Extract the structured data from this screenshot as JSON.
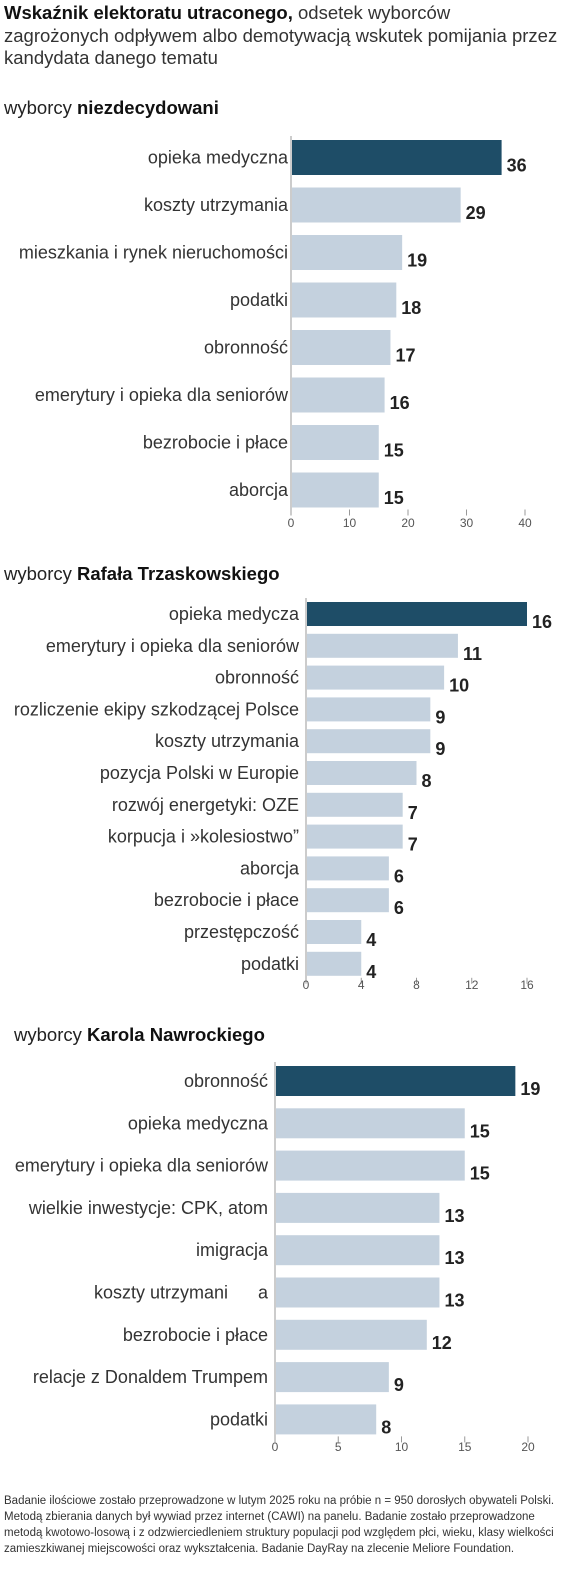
{
  "title": {
    "bold": "Wskaźnik elektoratu utraconego,",
    "rest": " odsetek wyborców zagrożonych odpływem albo demotywacją wskutek pomijania przez kandydata danego tematu"
  },
  "colors": {
    "highlight": "#1e4d67",
    "bar": "#c4d1de",
    "gridline": "#999999"
  },
  "chart_data": [
    {
      "type": "bar",
      "orientation": "horizontal",
      "label_prefix": "wyborcy ",
      "label_bold": "niezdecydowani",
      "categories": [
        "opieka medyczna",
        "koszty utrzymania",
        "mieszkania i rynek nieruchomości",
        "podatki",
        "obronność",
        "emerytury i opieka dla seniorów",
        "bezrobocie i płace",
        "aborcja"
      ],
      "values": [
        36,
        29,
        19,
        18,
        17,
        16,
        15,
        15
      ],
      "value_labels": [
        "36",
        "29",
        "19",
        "18",
        "17",
        "16",
        "15",
        "15"
      ],
      "xlim": [
        0,
        40
      ],
      "ticks": [
        0,
        10,
        20,
        30,
        40
      ],
      "tick_labels": [
        "0",
        "10",
        "20",
        "30",
        "40"
      ],
      "highlight_index": 0
    },
    {
      "type": "bar",
      "orientation": "horizontal",
      "label_prefix": "wyborcy ",
      "label_bold": "Rafała Trzaskowskiego",
      "categories": [
        "opieka medycza",
        "emerytury i opieka dla seniorów",
        "obronność",
        "rozliczenie ekipy szkodzącej Polsce",
        "koszty utrzymania",
        "pozycja Polski w Europie",
        "rozwój energetyki: OZE",
        "korpucja i »kolesiostwo”",
        "aborcja",
        "bezrobocie i płace",
        "przestępczość",
        "podatki"
      ],
      "values": [
        16,
        11,
        10,
        9,
        9,
        8,
        7,
        7,
        6,
        6,
        4,
        4
      ],
      "value_labels": [
        "16",
        "11",
        "10",
        "9",
        "9",
        "8",
        "7",
        "7",
        "6",
        "6",
        "4",
        "4"
      ],
      "xlim": [
        0,
        16
      ],
      "ticks": [
        0,
        4,
        8,
        12,
        16
      ],
      "tick_labels": [
        "0",
        "4",
        "8",
        "12",
        "16"
      ],
      "highlight_index": 0
    },
    {
      "type": "bar",
      "orientation": "horizontal",
      "label_prefix": "wyborcy ",
      "label_bold": "Karola Nawrockiego",
      "categories": [
        "obronność",
        "opieka medyczna",
        "emerytury i opieka dla seniorów",
        "wielkie inwestycje: CPK, atom",
        "imigracja",
        "koszty utrzymani      a",
        "bezrobocie i płace",
        "relacje z Donaldem Trumpem",
        "podatki"
      ],
      "values": [
        19,
        15,
        15,
        13,
        13,
        13,
        12,
        9,
        8
      ],
      "value_labels": [
        "19",
        "15",
        "15",
        "13",
        "13",
        "13",
        "12",
        "9",
        "8"
      ],
      "xlim": [
        0,
        20
      ],
      "ticks": [
        0,
        5,
        10,
        15,
        20
      ],
      "tick_labels": [
        "0",
        "5",
        "10",
        "15",
        "20"
      ],
      "highlight_index": 0
    }
  ],
  "note": "Badanie ilościowe zostało przeprowadzone w lutym 2025 roku na próbie n = 950 dorosłych obywateli Polski. Metodą zbierania danych był wywiad przez internet (CAWI) na panelu. Badanie zostało przeprowadzone metodą kwotowo-losową i z odzwierciedleniem struktury populacji pod względem płci, wieku, klasy wielkości zamieszkiwanej miejscowości oraz wykształcenia. Badanie DayRay na zlecenie Meliore Foundation."
}
